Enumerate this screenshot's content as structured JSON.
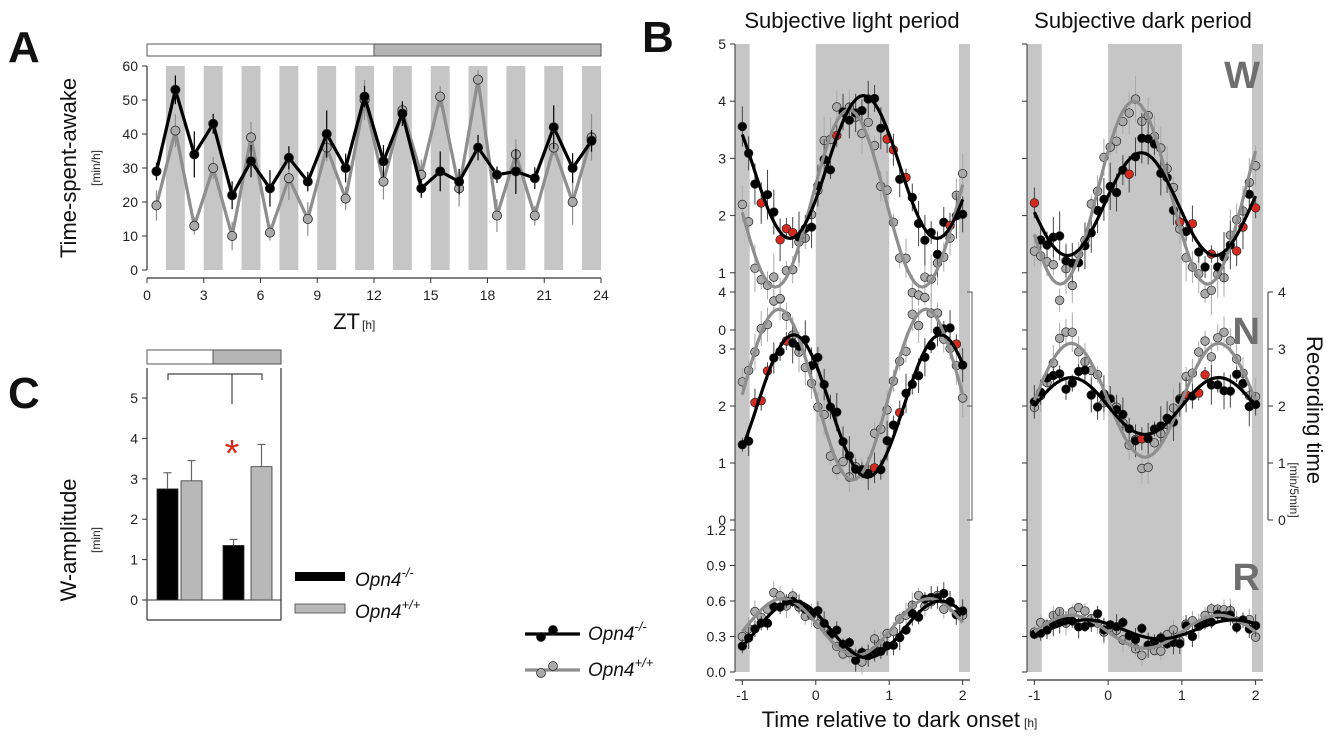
{
  "colors": {
    "ko": "#000000",
    "wt": "#8e8e8e",
    "wt_marker": "#aaaaaa",
    "shade": "#c6c6c6",
    "highlight": "#d52b1e"
  },
  "panel_labels": {
    "a": "A",
    "b": "B",
    "c": "C"
  },
  "legend": {
    "ko_base": "Opn4",
    "ko_sup": "-/-",
    "wt_base": "Opn4",
    "wt_sup": "+/+"
  },
  "chart_data": [
    {
      "id": "A",
      "type": "line",
      "ylabel": "Time-spent-awake",
      "yunit": "[min/h]",
      "xlabel": "ZT",
      "xunit": "[h]",
      "ylim": [
        0,
        60
      ],
      "xlim": [
        0,
        24
      ],
      "yticks": [
        0,
        10,
        20,
        30,
        40,
        50,
        60
      ],
      "xticks": [
        0,
        3,
        6,
        9,
        12,
        15,
        18,
        21,
        24
      ],
      "light_dark_bar": {
        "light": [
          0,
          12
        ],
        "dark": [
          12,
          24
        ]
      },
      "x": [
        0.5,
        1.5,
        2.5,
        3.5,
        4.5,
        5.5,
        6.5,
        7.5,
        8.5,
        9.5,
        10.5,
        11.5,
        12.5,
        13.5,
        14.5,
        15.5,
        16.5,
        17.5,
        18.5,
        19.5,
        20.5,
        21.5,
        22.5,
        23.5
      ],
      "series": [
        {
          "name": "Opn4-/-",
          "key": "ko",
          "values": [
            29,
            53,
            34,
            43,
            22,
            32,
            24,
            33,
            26,
            40,
            30,
            51,
            32,
            46,
            24,
            29,
            26,
            36,
            28,
            29,
            27,
            42,
            30,
            38
          ]
        },
        {
          "name": "Opn4+/+",
          "key": "wt",
          "values": [
            19,
            41,
            13,
            30,
            10,
            39,
            11,
            27,
            15,
            36,
            21,
            50,
            26,
            47,
            28,
            51,
            24,
            56,
            16,
            34,
            16,
            36,
            20,
            39
          ]
        }
      ]
    },
    {
      "id": "B",
      "type": "line",
      "column_titles": [
        "Subjective light period",
        "Subjective dark period"
      ],
      "xlabel": "Time relative to dark onset",
      "xunit": "[h]",
      "xlim": [
        -1.1,
        2.1
      ],
      "xticks": [
        -1,
        0,
        1,
        2
      ],
      "dark_interval": [
        0,
        1
      ],
      "right_axis_label": "Recording time",
      "right_axis_unit": "[min/5min]",
      "right_axis_ticks": [
        0,
        1,
        2,
        3,
        4
      ],
      "rows": [
        {
          "letter": "W",
          "ylim": [
            0,
            5
          ],
          "yticks": [
            0,
            1,
            2,
            3,
            4,
            5
          ],
          "ko_fit": {
            "light": {
              "mean": 2.85,
              "amp": 1.25,
              "peak": 0.65
            },
            "dark": {
              "mean": 2.2,
              "amp": 0.9,
              "peak": 0.45
            }
          },
          "wt_fit": {
            "light": {
              "mean": 2.3,
              "amp": 1.55,
              "peak": 0.45
            },
            "dark": {
              "mean": 2.4,
              "amp": 1.6,
              "peak": 0.35
            }
          }
        },
        {
          "letter": "N",
          "ylim": [
            0,
            4
          ],
          "yticks": [
            0,
            1,
            2,
            3,
            4
          ],
          "ko_fit": {
            "light": {
              "mean": 2.0,
              "amp": 1.25,
              "peak": -0.3
            },
            "dark": {
              "mean": 2.0,
              "amp": 0.5,
              "peak": -0.5
            }
          },
          "wt_fit": {
            "light": {
              "mean": 2.2,
              "amp": 1.5,
              "peak": -0.5
            },
            "dark": {
              "mean": 2.1,
              "amp": 1.0,
              "peak": -0.5
            }
          }
        },
        {
          "letter": "R",
          "ylim": [
            0,
            1.2
          ],
          "yticks": [
            0.0,
            0.3,
            0.6,
            0.9,
            1.2
          ],
          "ko_fit": {
            "light": {
              "mean": 0.36,
              "amp": 0.24,
              "peak": -0.3
            },
            "dark": {
              "mean": 0.36,
              "amp": 0.08,
              "peak": -0.3
            }
          },
          "wt_fit": {
            "light": {
              "mean": 0.38,
              "amp": 0.24,
              "peak": -0.45
            },
            "dark": {
              "mean": 0.34,
              "amp": 0.14,
              "peak": -0.5
            }
          }
        }
      ]
    },
    {
      "id": "C",
      "type": "bar",
      "ylabel": "W-amplitude",
      "yunit": "[min]",
      "ylim": [
        0,
        5
      ],
      "yticks": [
        0,
        1,
        2,
        3,
        4,
        5
      ],
      "groups": [
        "light",
        "dark"
      ],
      "series": [
        {
          "name": "Opn4-/-",
          "key": "ko",
          "values": [
            2.75,
            1.35
          ],
          "err": [
            0.4,
            0.15
          ]
        },
        {
          "name": "Opn4+/+",
          "key": "wt",
          "values": [
            2.95,
            3.3
          ],
          "err": [
            0.5,
            0.55
          ]
        }
      ],
      "significance": "*"
    }
  ]
}
